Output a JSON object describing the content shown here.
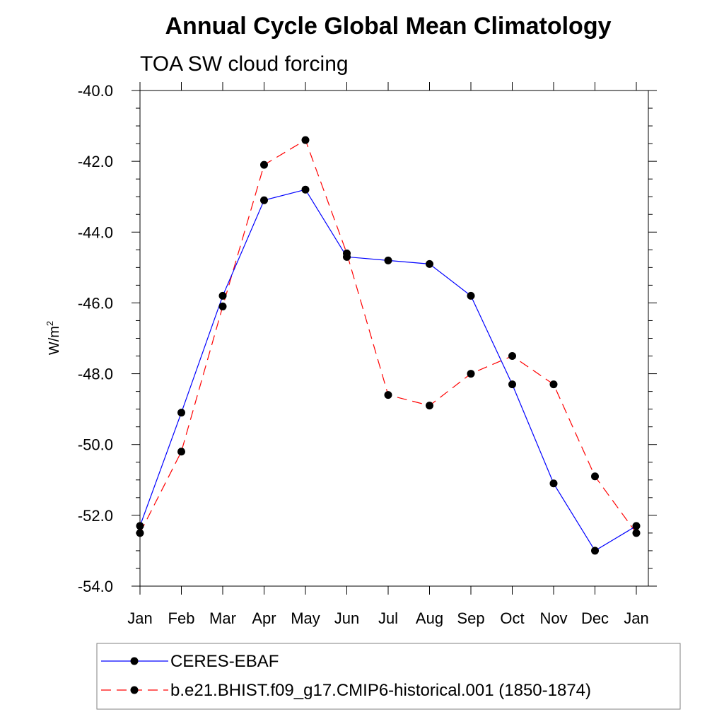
{
  "chart_data": {
    "type": "line",
    "title": "Annual Cycle Global Mean Climatology",
    "subtitle": "TOA SW cloud forcing",
    "ylabel_main": "W/m",
    "ylabel_sup": "2",
    "xlabel": "",
    "categories": [
      "Jan",
      "Feb",
      "Mar",
      "Apr",
      "May",
      "Jun",
      "Jul",
      "Aug",
      "Sep",
      "Oct",
      "Nov",
      "Dec",
      "Jan"
    ],
    "ylim": [
      -54.0,
      -40.0
    ],
    "y_ticks": [
      -40.0,
      -42.0,
      -44.0,
      -46.0,
      -48.0,
      -50.0,
      -52.0,
      -54.0
    ],
    "y_tick_labels": [
      "-40.0",
      "-42.0",
      "-44.0",
      "-46.0",
      "-48.0",
      "-50.0",
      "-52.0",
      "-54.0"
    ],
    "grid": false,
    "legend_placement": "bottom",
    "series": [
      {
        "name": "CERES-EBAF",
        "color": "#0000ff",
        "line_style": "solid",
        "marker": "filled-circle",
        "values": [
          -52.3,
          -49.1,
          -45.8,
          -43.1,
          -42.8,
          -44.7,
          -44.8,
          -44.9,
          -45.8,
          -48.3,
          -51.1,
          -53.0,
          -52.3
        ]
      },
      {
        "name": "b.e21.BHIST.f09_g17.CMIP6-historical.001 (1850-1874)",
        "color": "#ff0000",
        "line_style": "dashed",
        "marker": "filled-circle",
        "values": [
          -52.5,
          -50.2,
          -46.1,
          -42.1,
          -41.4,
          -44.6,
          -48.6,
          -48.9,
          -48.0,
          -47.5,
          -48.3,
          -50.9,
          -52.5
        ]
      }
    ],
    "marker_color": "#000000"
  }
}
